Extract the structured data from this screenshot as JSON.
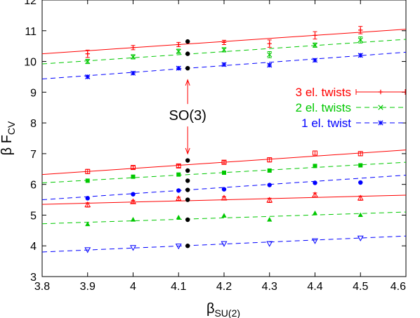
{
  "chart_data": {
    "type": "scatter",
    "xlabel": "β",
    "xlabel_sub": "SU(2)",
    "ylabel": "β F",
    "ylabel_sub": "CV",
    "xlim": [
      3.8,
      4.6
    ],
    "ylim": [
      3,
      12
    ],
    "xticks": [
      "3.8",
      "3.9",
      "4",
      "4.1",
      "4.2",
      "4.3",
      "4.4",
      "4.5",
      "4.6"
    ],
    "yticks": [
      "3",
      "4",
      "5",
      "6",
      "7",
      "8",
      "9",
      "10",
      "11",
      "12"
    ],
    "grid": false,
    "legend_position": "right",
    "colors": {
      "red": "#ff0000",
      "green": "#00c800",
      "blue": "#0000ff",
      "black": "#000000"
    },
    "annotation": {
      "text": "SO(3)",
      "x": 4.12,
      "y": 8.25,
      "arrow_up_to": 9.4,
      "arrow_down_to": 7.0
    },
    "series": [
      {
        "name": "3 el. twists",
        "color": "#ff0000",
        "marker": "plus",
        "dash": "solid",
        "points": [
          [
            3.9,
            10.25
          ],
          [
            4.0,
            10.45
          ],
          [
            4.1,
            10.55
          ],
          [
            4.2,
            10.62
          ],
          [
            4.3,
            10.58
          ],
          [
            4.4,
            10.85
          ],
          [
            4.5,
            11.02
          ]
        ],
        "errors": [
          0.12,
          0.07,
          0.07,
          0.07,
          0.12,
          0.12,
          0.12
        ],
        "fit": [
          [
            3.8,
            10.25
          ],
          [
            4.6,
            11.05
          ]
        ]
      },
      {
        "name": "2 el. twists",
        "color": "#00c800",
        "marker": "cross",
        "dash": "dashed",
        "points": [
          [
            3.9,
            10.0
          ],
          [
            4.0,
            10.15
          ],
          [
            4.1,
            10.33
          ],
          [
            4.2,
            10.38
          ],
          [
            4.3,
            10.22
          ],
          [
            4.4,
            10.53
          ],
          [
            4.5,
            10.7
          ]
        ],
        "errors": [
          0.07,
          0.07,
          0.07,
          0.07,
          0.1,
          0.07,
          0.1
        ],
        "fit": [
          [
            3.8,
            9.92
          ],
          [
            4.6,
            10.72
          ]
        ]
      },
      {
        "name": "1 el. twist",
        "color": "#0000ff",
        "marker": "star",
        "dash": "dashed",
        "points": [
          [
            3.9,
            9.5
          ],
          [
            4.0,
            9.62
          ],
          [
            4.1,
            9.78
          ],
          [
            4.2,
            9.9
          ],
          [
            4.3,
            9.88
          ],
          [
            4.4,
            10.04
          ],
          [
            4.5,
            10.2
          ]
        ],
        "errors": [
          0.05,
          0.05,
          0.05,
          0.05,
          0.05,
          0.05,
          0.05
        ],
        "fit": [
          [
            3.8,
            9.43
          ],
          [
            4.6,
            10.3
          ]
        ]
      },
      {
        "name": "",
        "color": "#ff0000",
        "marker": "open-square",
        "dash": "solid",
        "points": [
          [
            3.9,
            6.42
          ],
          [
            4.0,
            6.55
          ],
          [
            4.1,
            6.6
          ],
          [
            4.2,
            6.72
          ],
          [
            4.3,
            6.8
          ],
          [
            4.4,
            7.02
          ],
          [
            4.5,
            7.0
          ]
        ],
        "errors": [
          0.07,
          0.05,
          0.05,
          0.05,
          0.07,
          0.07,
          0.07
        ],
        "fit": [
          [
            3.8,
            6.32
          ],
          [
            4.6,
            7.12
          ]
        ]
      },
      {
        "name": "",
        "color": "#00c800",
        "marker": "filled-square",
        "dash": "dashed",
        "points": [
          [
            3.9,
            6.12
          ],
          [
            4.0,
            6.25
          ],
          [
            4.1,
            6.32
          ],
          [
            4.2,
            6.38
          ],
          [
            4.3,
            6.45
          ],
          [
            4.4,
            6.6
          ],
          [
            4.5,
            6.62
          ]
        ],
        "errors": [
          0,
          0,
          0,
          0,
          0,
          0,
          0
        ],
        "fit": [
          [
            3.8,
            6.05
          ],
          [
            4.6,
            6.72
          ]
        ]
      },
      {
        "name": "",
        "color": "#0000ff",
        "marker": "filled-circle",
        "dash": "dashed",
        "points": [
          [
            3.9,
            5.55
          ],
          [
            4.0,
            5.68
          ],
          [
            4.1,
            5.8
          ],
          [
            4.2,
            5.84
          ],
          [
            4.3,
            5.98
          ],
          [
            4.4,
            6.05
          ],
          [
            4.5,
            6.06
          ]
        ],
        "errors": [
          0,
          0,
          0,
          0,
          0,
          0,
          0
        ],
        "fit": [
          [
            3.8,
            5.5
          ],
          [
            4.6,
            6.3
          ]
        ]
      },
      {
        "name": "",
        "color": "#ff0000",
        "marker": "open-triangle",
        "dash": "solid",
        "points": [
          [
            3.9,
            5.33
          ],
          [
            4.0,
            5.43
          ],
          [
            4.1,
            5.53
          ],
          [
            4.2,
            5.55
          ],
          [
            4.3,
            5.48
          ],
          [
            4.4,
            5.65
          ],
          [
            4.5,
            5.55
          ]
        ],
        "errors": [
          0.07,
          0.05,
          0.05,
          0.05,
          0.07,
          0.07,
          0.07
        ],
        "fit": [
          [
            3.8,
            5.35
          ],
          [
            4.6,
            5.65
          ]
        ]
      },
      {
        "name": "",
        "color": "#00c800",
        "marker": "filled-triangle",
        "dash": "dashed",
        "points": [
          [
            3.9,
            4.7
          ],
          [
            4.0,
            4.85
          ],
          [
            4.1,
            4.92
          ],
          [
            4.2,
            4.98
          ],
          [
            4.3,
            4.85
          ],
          [
            4.4,
            5.06
          ],
          [
            4.5,
            5.0
          ]
        ],
        "errors": [
          0,
          0,
          0,
          0,
          0,
          0,
          0
        ],
        "fit": [
          [
            3.8,
            4.72
          ],
          [
            4.6,
            5.1
          ]
        ]
      },
      {
        "name": "",
        "color": "#0000ff",
        "marker": "open-triangle-down",
        "dash": "dashed",
        "points": [
          [
            3.9,
            3.88
          ],
          [
            4.0,
            3.95
          ],
          [
            4.1,
            4.0
          ],
          [
            4.2,
            4.08
          ],
          [
            4.3,
            4.08
          ],
          [
            4.4,
            4.17
          ],
          [
            4.5,
            4.26
          ]
        ],
        "errors": [
          0,
          0,
          0,
          0,
          0,
          0,
          0
        ],
        "fit": [
          [
            3.8,
            3.8
          ],
          [
            4.6,
            4.32
          ]
        ]
      },
      {
        "name": "",
        "color": "#000000",
        "marker": "filled-circle",
        "dash": "none",
        "points": [
          [
            4.12,
            10.65
          ],
          [
            4.12,
            10.25
          ],
          [
            4.12,
            9.78
          ],
          [
            4.12,
            6.78
          ],
          [
            4.12,
            6.45
          ],
          [
            4.12,
            6.12
          ],
          [
            4.12,
            5.82
          ],
          [
            4.12,
            5.5
          ],
          [
            4.12,
            4.85
          ],
          [
            4.12,
            4.0
          ]
        ],
        "errors": [
          0,
          0,
          0,
          0,
          0,
          0,
          0,
          0,
          0,
          0
        ],
        "fit": []
      }
    ]
  }
}
